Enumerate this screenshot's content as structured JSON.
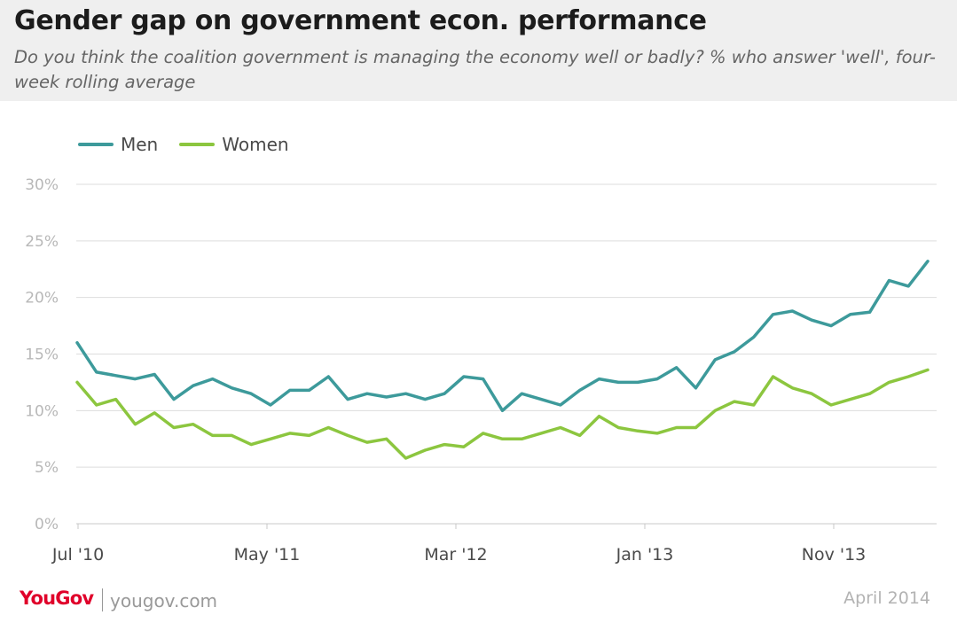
{
  "header": {
    "title": "Gender gap on government econ. performance",
    "subtitle": "Do you think the coalition government is managing the economy well or badly? % who answer 'well', four-week rolling average"
  },
  "footer": {
    "brand": "YouGov",
    "url": "yougov.com",
    "date": "April 2014"
  },
  "colors": {
    "men": "#3d9a9b",
    "women": "#8cc63f",
    "grid": "#dddddd",
    "tick_label": "#b8b8b8",
    "x_label": "#4a4a4a"
  },
  "chart_data": {
    "type": "line",
    "title": "Gender gap on government econ. performance",
    "x_axis": {
      "type": "date",
      "range": [
        "2010-07",
        "2014-03"
      ],
      "tick_labels": [
        "Jul '10",
        "May '11",
        "Mar '12",
        "Jan '13",
        "Nov '13"
      ]
    },
    "y_axis": {
      "range": [
        0,
        30
      ],
      "ticks": [
        0,
        5,
        10,
        15,
        20,
        25,
        30
      ],
      "tick_labels": [
        "0%",
        "5%",
        "10%",
        "15%",
        "20%",
        "25%",
        "30%"
      ],
      "unit": "%"
    },
    "grid": true,
    "legend": "top-left",
    "series": [
      {
        "name": "Men",
        "color": "#3d9a9b",
        "points": [
          [
            "2010-07",
            16.0
          ],
          [
            "2010-08",
            13.4
          ],
          [
            "2010-09",
            13.1
          ],
          [
            "2010-10",
            12.8
          ],
          [
            "2010-11",
            13.2
          ],
          [
            "2010-12",
            11.0
          ],
          [
            "2011-01",
            12.2
          ],
          [
            "2011-02",
            12.8
          ],
          [
            "2011-03",
            12.0
          ],
          [
            "2011-04",
            11.5
          ],
          [
            "2011-05",
            10.5
          ],
          [
            "2011-06",
            11.8
          ],
          [
            "2011-07",
            11.8
          ],
          [
            "2011-08",
            13.0
          ],
          [
            "2011-09",
            11.0
          ],
          [
            "2011-10",
            11.5
          ],
          [
            "2011-11",
            11.2
          ],
          [
            "2011-12",
            11.5
          ],
          [
            "2012-01",
            11.0
          ],
          [
            "2012-02",
            11.5
          ],
          [
            "2012-03",
            13.0
          ],
          [
            "2012-04",
            12.8
          ],
          [
            "2012-05",
            10.0
          ],
          [
            "2012-06",
            11.5
          ],
          [
            "2012-07",
            11.0
          ],
          [
            "2012-08",
            10.5
          ],
          [
            "2012-09",
            11.8
          ],
          [
            "2012-10",
            12.8
          ],
          [
            "2012-11",
            12.5
          ],
          [
            "2012-12",
            12.5
          ],
          [
            "2013-01",
            12.8
          ],
          [
            "2013-02",
            13.8
          ],
          [
            "2013-03",
            12.0
          ],
          [
            "2013-04",
            14.5
          ],
          [
            "2013-05",
            15.2
          ],
          [
            "2013-06",
            16.5
          ],
          [
            "2013-07",
            18.5
          ],
          [
            "2013-08",
            18.8
          ],
          [
            "2013-09",
            18.0
          ],
          [
            "2013-10",
            17.5
          ],
          [
            "2013-11",
            18.5
          ],
          [
            "2013-12",
            18.7
          ],
          [
            "2014-01",
            21.5
          ],
          [
            "2014-02",
            21.0
          ],
          [
            "2014-03",
            23.2
          ]
        ]
      },
      {
        "name": "Women",
        "color": "#8cc63f",
        "points": [
          [
            "2010-07",
            12.5
          ],
          [
            "2010-08",
            10.5
          ],
          [
            "2010-09",
            11.0
          ],
          [
            "2010-10",
            8.8
          ],
          [
            "2010-11",
            9.8
          ],
          [
            "2010-12",
            8.5
          ],
          [
            "2011-01",
            8.8
          ],
          [
            "2011-02",
            7.8
          ],
          [
            "2011-03",
            7.8
          ],
          [
            "2011-04",
            7.0
          ],
          [
            "2011-05",
            7.5
          ],
          [
            "2011-06",
            8.0
          ],
          [
            "2011-07",
            7.8
          ],
          [
            "2011-08",
            8.5
          ],
          [
            "2011-09",
            7.8
          ],
          [
            "2011-10",
            7.2
          ],
          [
            "2011-11",
            7.5
          ],
          [
            "2011-12",
            5.8
          ],
          [
            "2012-01",
            6.5
          ],
          [
            "2012-02",
            7.0
          ],
          [
            "2012-03",
            6.8
          ],
          [
            "2012-04",
            8.0
          ],
          [
            "2012-05",
            7.5
          ],
          [
            "2012-06",
            7.5
          ],
          [
            "2012-07",
            8.0
          ],
          [
            "2012-08",
            8.5
          ],
          [
            "2012-09",
            7.8
          ],
          [
            "2012-10",
            9.5
          ],
          [
            "2012-11",
            8.5
          ],
          [
            "2012-12",
            8.2
          ],
          [
            "2013-01",
            8.0
          ],
          [
            "2013-02",
            8.5
          ],
          [
            "2013-03",
            8.5
          ],
          [
            "2013-04",
            10.0
          ],
          [
            "2013-05",
            10.8
          ],
          [
            "2013-06",
            10.5
          ],
          [
            "2013-07",
            13.0
          ],
          [
            "2013-08",
            12.0
          ],
          [
            "2013-09",
            11.5
          ],
          [
            "2013-10",
            10.5
          ],
          [
            "2013-11",
            11.0
          ],
          [
            "2013-12",
            11.5
          ],
          [
            "2014-01",
            12.5
          ],
          [
            "2014-02",
            13.0
          ],
          [
            "2014-03",
            13.6
          ]
        ]
      }
    ]
  }
}
